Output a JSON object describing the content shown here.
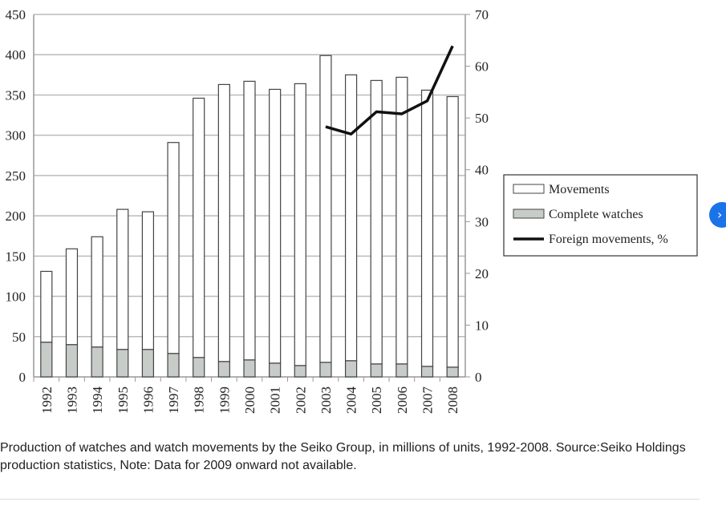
{
  "chart_data": {
    "type": "bar",
    "stacked": true,
    "categories": [
      "1992",
      "1993",
      "1994",
      "1995",
      "1996",
      "1997",
      "1998",
      "1999",
      "2000",
      "2001",
      "2002",
      "2003",
      "2004",
      "2005",
      "2006",
      "2007",
      "2008"
    ],
    "series": [
      {
        "name": "Movements",
        "axis": "left",
        "values": [
          131,
          159,
          174,
          208,
          205,
          291,
          346,
          363,
          367,
          357,
          364,
          399,
          375,
          368,
          372,
          356,
          348
        ]
      },
      {
        "name": "Complete watches",
        "axis": "left",
        "values": [
          43,
          40,
          37,
          34,
          34,
          29,
          24,
          19,
          21,
          17,
          14,
          18,
          20,
          16,
          16,
          13,
          12
        ]
      },
      {
        "name": "Foreign movements, %",
        "type": "line",
        "axis": "right",
        "values": [
          null,
          null,
          null,
          null,
          null,
          null,
          null,
          null,
          null,
          null,
          null,
          48.3,
          46.9,
          51.2,
          50.8,
          53.3,
          63.9
        ]
      }
    ],
    "note": "Bar height shows total production; the grey lower part shows complete watches",
    "ylim": [
      0,
      450
    ],
    "yticks": [
      "0",
      "50",
      "100",
      "150",
      "200",
      "250",
      "300",
      "350",
      "400",
      "450"
    ],
    "y2lim": [
      0,
      70
    ],
    "y2ticks": [
      "0",
      "10",
      "20",
      "30",
      "40",
      "50",
      "60",
      "70"
    ],
    "legend": {
      "placement": "right",
      "entries": [
        "Movements",
        "Complete watches",
        "Foreign movements, %"
      ]
    },
    "grid": true,
    "colors": {
      "movements": "#ffffff",
      "complete": "#c7ccc9",
      "line": "#111111",
      "grid": "#bbbbbb"
    }
  },
  "caption": "Production of watches and watch movements by the Seiko Group, in millions of units, 1992-2008. Source:Seiko Holdings production statistics, Note: Data for 2009 onward not available.",
  "next_button": "›"
}
